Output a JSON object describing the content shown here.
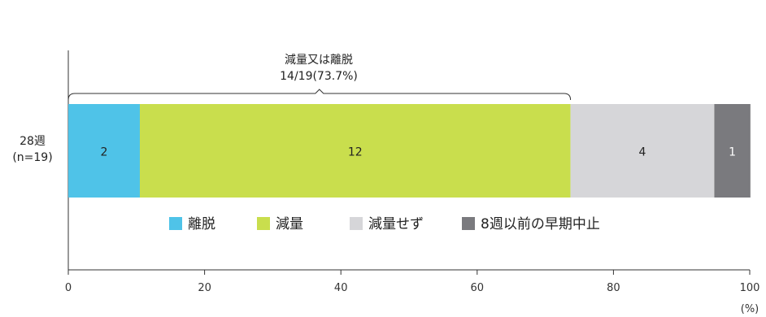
{
  "chart_data": {
    "type": "bar",
    "orientation": "horizontal",
    "stacked": true,
    "xunit": "(%)",
    "xlim": [
      0,
      100
    ],
    "xticks": [
      "0",
      "20",
      "40",
      "60",
      "80",
      "100"
    ],
    "categories": [
      "28週\n(n=19)"
    ],
    "category_lines": [
      "28週",
      "(n=19)"
    ],
    "series": [
      {
        "name": "離脱",
        "values": [
          2
        ],
        "percent": 10.5,
        "label": "2",
        "color": "#4fc3e8"
      },
      {
        "name": "減量",
        "values": [
          12
        ],
        "percent": 63.2,
        "label": "12",
        "color": "#c9de4d"
      },
      {
        "name": "減量せず",
        "values": [
          4
        ],
        "percent": 21.1,
        "label": "4",
        "color": "#d6d6d9"
      },
      {
        "name": "8週以前の早期中止",
        "values": [
          1
        ],
        "percent": 5.3,
        "label": "1",
        "color": "#7a7a7e"
      }
    ],
    "annotation": {
      "line1": "減量又は離脱",
      "line2": "14/19(73.7%)",
      "from": 0,
      "to": 73.7
    },
    "legend_position": "bottom",
    "grid": false
  }
}
